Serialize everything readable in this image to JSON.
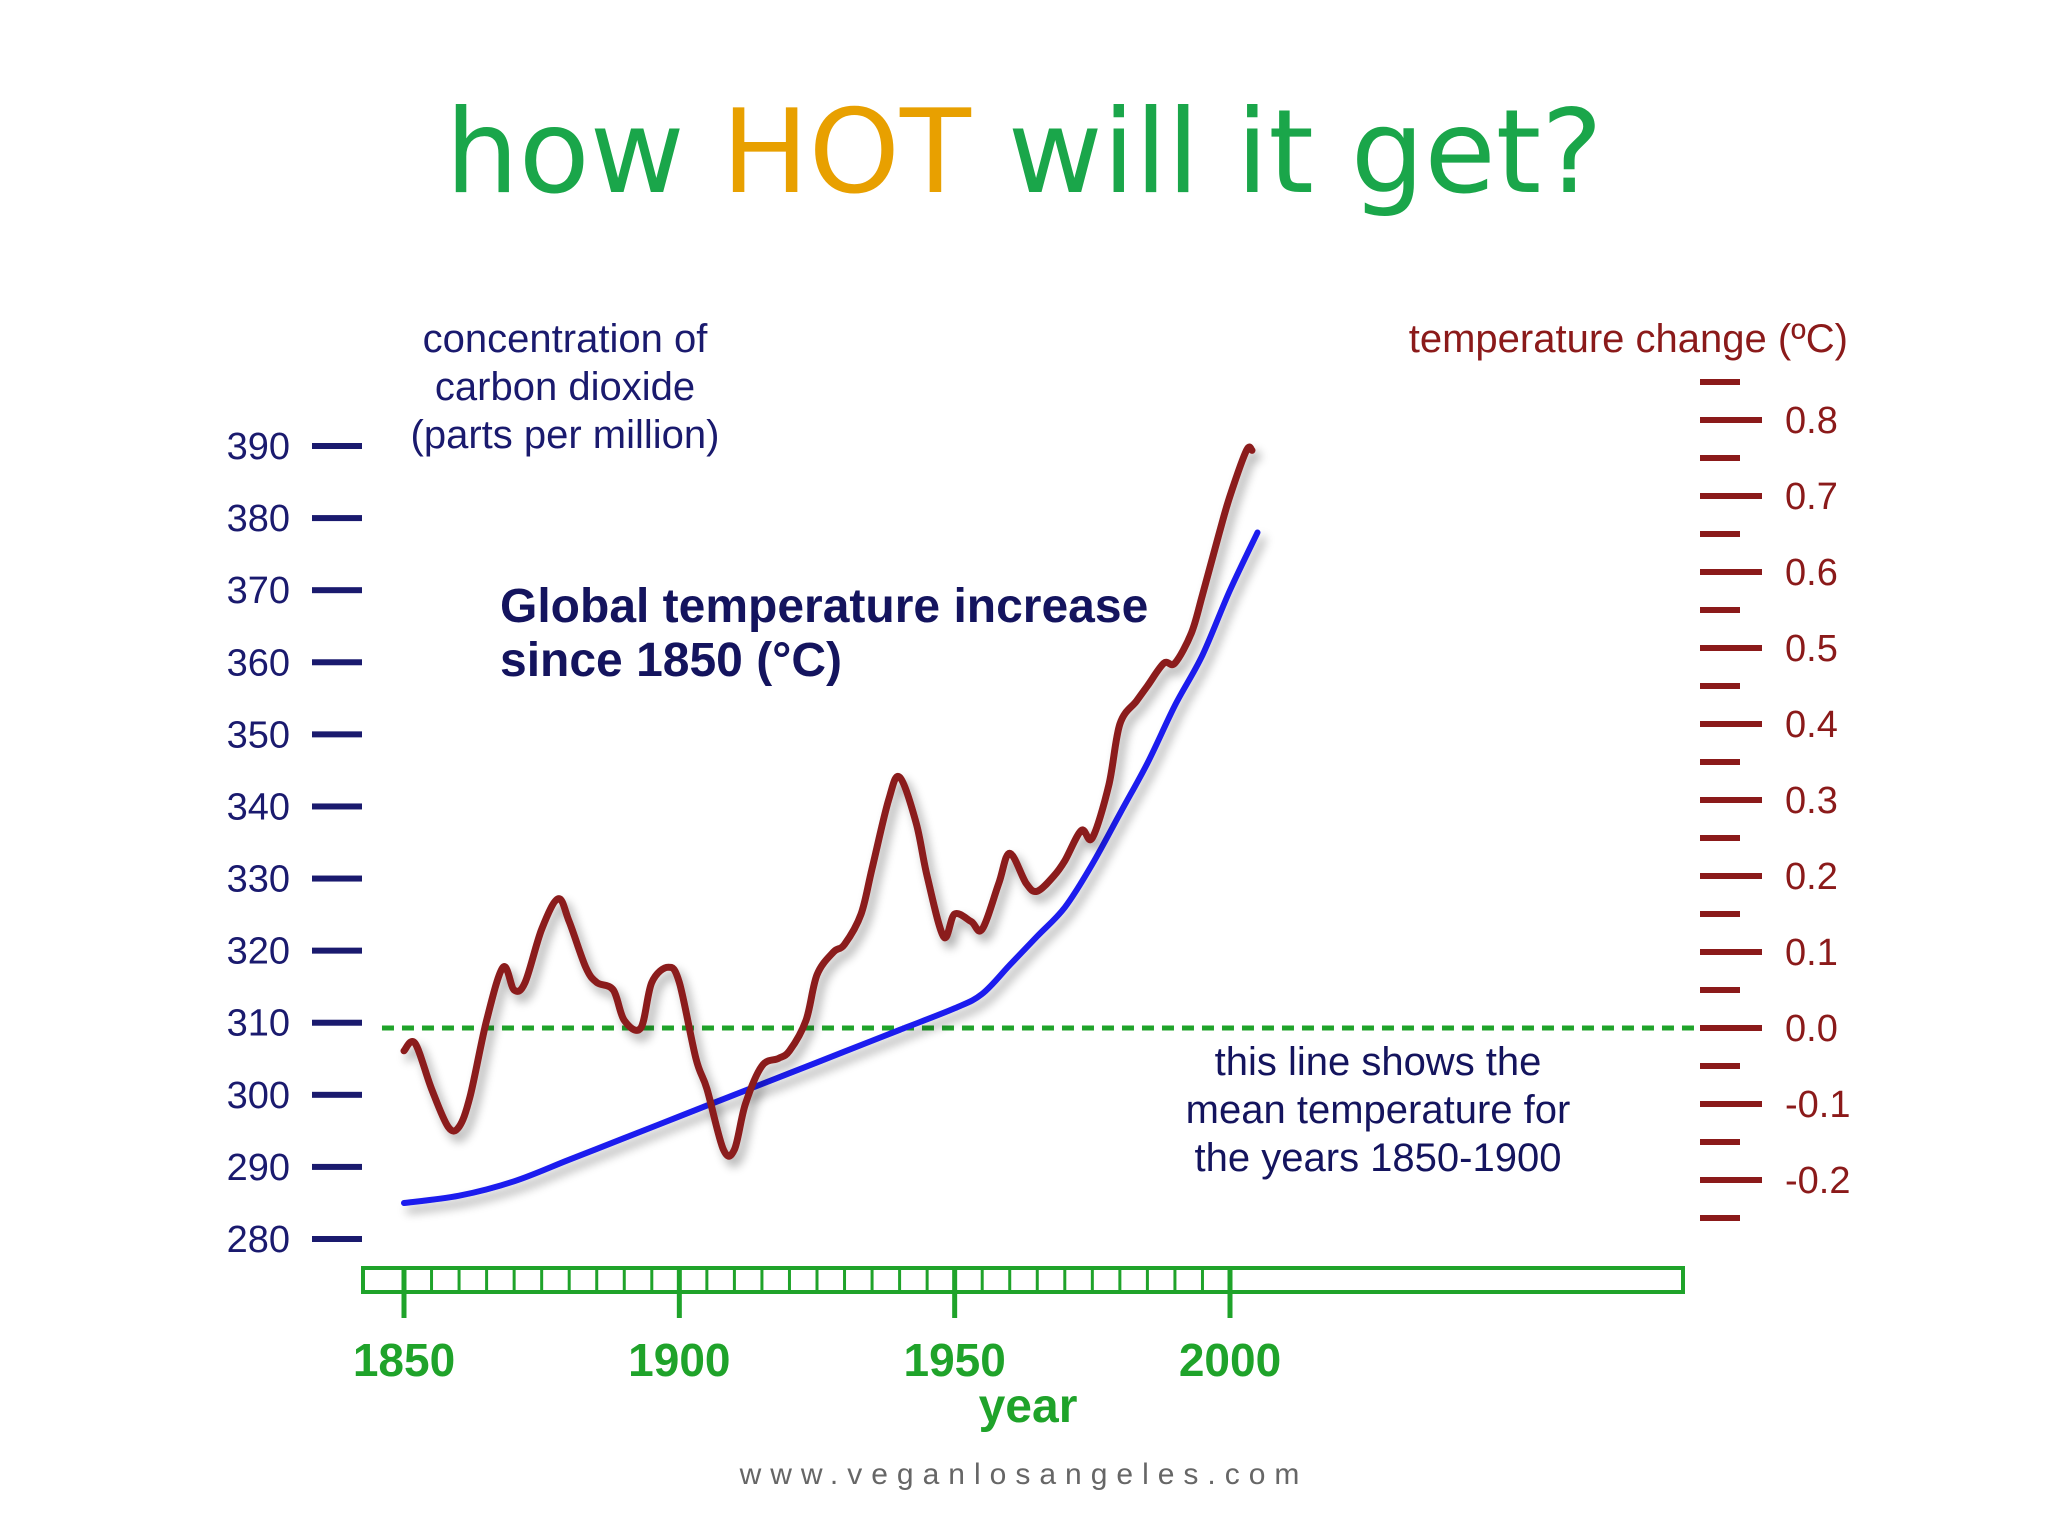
{
  "title": {
    "part1": "how ",
    "part2": "HOT",
    "part3": " will it get?",
    "color_main": "#1aa64a",
    "color_accent": "#e8a000"
  },
  "footer": {
    "url": "www.veganlosangeles.com"
  },
  "chart_data": {
    "type": "line",
    "title": "Global temperature increase since 1850 (°C)",
    "xlabel": "year",
    "xlim": [
      1850,
      2005
    ],
    "x_ticks": [
      1850,
      1900,
      1950,
      2000
    ],
    "left_axis": {
      "label": [
        "concentration of",
        "carbon dioxide",
        "(parts per million)"
      ],
      "range": [
        280,
        390
      ],
      "ticks": [
        280,
        290,
        300,
        310,
        320,
        330,
        340,
        350,
        360,
        370,
        380,
        390
      ]
    },
    "right_axis": {
      "label": "temperature change (ºC)",
      "range": [
        -0.25,
        0.85
      ],
      "ticks": [
        0.8,
        0.7,
        0.6,
        0.5,
        0.4,
        0.3,
        0.2,
        0.1,
        0.0,
        -0.1,
        -0.2
      ],
      "tick_labels": [
        "0.8",
        "0.7",
        "0.6",
        "0.5",
        "0.4",
        "0.3",
        "0.2",
        "0.1",
        "0.0",
        "-0.1",
        "-0.2"
      ]
    },
    "series": [
      {
        "axis": "left",
        "color": "#1a1aee",
        "x": [
          1850,
          1860,
          1870,
          1880,
          1890,
          1900,
          1910,
          1920,
          1930,
          1940,
          1950,
          1955,
          1960,
          1965,
          1970,
          1975,
          1980,
          1985,
          1990,
          1995,
          2000,
          2005
        ],
        "y": [
          285,
          286,
          288,
          291,
          294,
          297,
          300,
          303,
          306,
          309,
          312,
          314,
          318,
          322,
          326,
          332,
          339,
          346,
          354,
          361,
          370,
          378
        ]
      },
      {
        "axis": "right",
        "color": "#8b1a1a",
        "x": [
          1850,
          1852,
          1855,
          1858,
          1860,
          1862,
          1865,
          1868,
          1870,
          1872,
          1875,
          1878,
          1880,
          1883,
          1885,
          1888,
          1890,
          1893,
          1895,
          1898,
          1900,
          1903,
          1905,
          1908,
          1910,
          1912,
          1915,
          1918,
          1920,
          1923,
          1925,
          1928,
          1930,
          1933,
          1935,
          1938,
          1940,
          1943,
          1945,
          1948,
          1950,
          1953,
          1955,
          1958,
          1960,
          1963,
          1965,
          1968,
          1970,
          1973,
          1975,
          1978,
          1980,
          1983,
          1985,
          1988,
          1990,
          1993,
          1995,
          1998,
          2000,
          2003,
          2004
        ],
        "y": [
          -0.03,
          -0.02,
          -0.08,
          -0.13,
          -0.13,
          -0.09,
          0.01,
          0.08,
          0.05,
          0.06,
          0.13,
          0.17,
          0.14,
          0.08,
          0.06,
          0.05,
          0.01,
          0.0,
          0.06,
          0.08,
          0.06,
          -0.04,
          -0.08,
          -0.16,
          -0.16,
          -0.1,
          -0.05,
          -0.04,
          -0.03,
          0.01,
          0.07,
          0.1,
          0.11,
          0.15,
          0.21,
          0.3,
          0.33,
          0.27,
          0.2,
          0.12,
          0.15,
          0.14,
          0.13,
          0.19,
          0.23,
          0.19,
          0.18,
          0.2,
          0.22,
          0.26,
          0.25,
          0.32,
          0.4,
          0.43,
          0.45,
          0.48,
          0.48,
          0.52,
          0.57,
          0.65,
          0.7,
          0.76,
          0.76
        ]
      }
    ],
    "baseline": {
      "y": 0.0,
      "axis": "right",
      "style": "dashed",
      "color": "#1fa32a"
    },
    "annotation": [
      "this line shows the",
      "mean temperature for",
      "the years 1850-1900"
    ]
  }
}
